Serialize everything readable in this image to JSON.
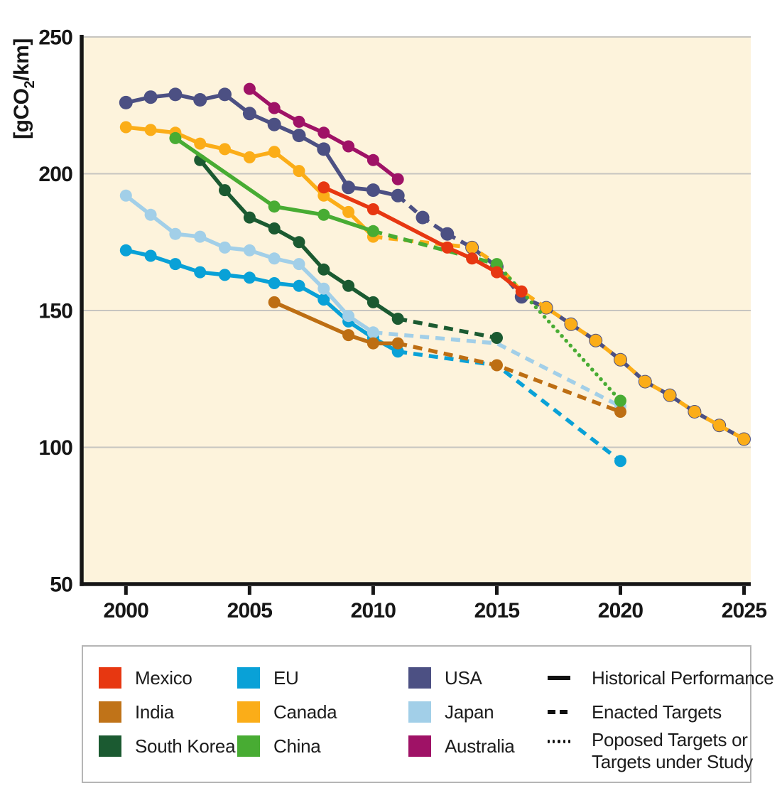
{
  "chart": {
    "plot_bg": "#fdf3dc",
    "grid_color": "#c7c5c0",
    "axis_color": "#161616",
    "gridline_values": [
      250,
      200,
      150,
      100
    ],
    "y_axis": {
      "title_prefix": "[gCO",
      "title_sub": "2",
      "title_suffix": "/km]",
      "ticks": [
        "250",
        "200",
        "150",
        "100",
        "50"
      ],
      "tick_values": [
        250,
        200,
        150,
        100,
        50
      ]
    },
    "x_axis": {
      "ticks": [
        "2000",
        "2005",
        "2010",
        "2015",
        "2020",
        "2025"
      ],
      "tick_values": [
        2000,
        2005,
        2010,
        2015,
        2020,
        2025
      ]
    }
  },
  "chart_data": {
    "type": "line",
    "title": "",
    "xlabel": "",
    "ylabel": "[gCO2/km]",
    "unit": "gCO2/km",
    "xlim": [
      1999.2,
      2025.3
    ],
    "ylim": [
      50,
      250
    ],
    "grid": true,
    "legend_position": "bottom",
    "line_styles": {
      "solid": "Historical Performance",
      "dashed": "Enacted Targets",
      "dotted": "Poposed Targets or Targets under Study"
    },
    "series": [
      {
        "name": "USA",
        "color": "#4c5083",
        "marker_radius": 9.5,
        "segments": [
          {
            "style": "solid",
            "points": [
              [
                2000,
                226
              ],
              [
                2001,
                228
              ],
              [
                2002,
                229
              ],
              [
                2003,
                227
              ],
              [
                2004,
                229
              ],
              [
                2005,
                222
              ],
              [
                2006,
                218
              ],
              [
                2007,
                214
              ],
              [
                2008,
                209
              ],
              [
                2009,
                195
              ],
              [
                2010,
                194
              ],
              [
                2011,
                192
              ]
            ]
          },
          {
            "style": "dashed",
            "points": [
              [
                2011,
                192
              ],
              [
                2012,
                184
              ],
              [
                2013,
                178
              ],
              [
                2014,
                173
              ],
              [
                2015,
                166
              ],
              [
                2016,
                155
              ],
              [
                2017,
                151
              ],
              [
                2018,
                145
              ],
              [
                2019,
                139
              ],
              [
                2020,
                132
              ],
              [
                2021,
                124
              ],
              [
                2022,
                119
              ],
              [
                2023,
                113
              ],
              [
                2024,
                108
              ],
              [
                2025,
                103
              ]
            ]
          }
        ],
        "markers": [
          2000,
          2001,
          2002,
          2003,
          2004,
          2005,
          2006,
          2007,
          2008,
          2009,
          2010,
          2011,
          2012,
          2013,
          2014,
          2015,
          2016,
          2017,
          2018,
          2019,
          2020,
          2021,
          2022,
          2023,
          2024,
          2025
        ]
      },
      {
        "name": "Canada",
        "color": "#fbad18",
        "marker_radius": 8.5,
        "segments": [
          {
            "style": "solid",
            "points": [
              [
                2000,
                217
              ],
              [
                2001,
                216
              ],
              [
                2002,
                215
              ],
              [
                2003,
                211
              ],
              [
                2004,
                209
              ],
              [
                2005,
                206
              ],
              [
                2006,
                208
              ],
              [
                2007,
                201
              ],
              [
                2008,
                192
              ],
              [
                2009,
                186
              ],
              [
                2010,
                177
              ]
            ]
          },
          {
            "style": "dashed",
            "points": [
              [
                2010,
                177
              ],
              [
                2014,
                173
              ],
              [
                2015,
                167
              ],
              [
                2016,
                157
              ],
              [
                2017,
                151
              ],
              [
                2018,
                145
              ],
              [
                2019,
                139
              ],
              [
                2020,
                132
              ],
              [
                2021,
                124
              ],
              [
                2022,
                119
              ],
              [
                2023,
                113
              ],
              [
                2024,
                108
              ],
              [
                2025,
                103
              ]
            ]
          }
        ],
        "markers": [
          2000,
          2001,
          2002,
          2003,
          2004,
          2005,
          2006,
          2007,
          2008,
          2009,
          2010,
          2014,
          2017,
          2018,
          2019,
          2020,
          2021,
          2022,
          2023,
          2024,
          2025
        ]
      },
      {
        "name": "EU",
        "color": "#09a1d7",
        "marker_radius": 8.5,
        "segments": [
          {
            "style": "solid",
            "points": [
              [
                2000,
                172
              ],
              [
                2001,
                170
              ],
              [
                2002,
                167
              ],
              [
                2003,
                164
              ],
              [
                2004,
                163
              ],
              [
                2005,
                162
              ],
              [
                2006,
                160
              ],
              [
                2007,
                159
              ],
              [
                2008,
                154
              ],
              [
                2009,
                146
              ],
              [
                2010,
                140
              ],
              [
                2011,
                135
              ]
            ]
          },
          {
            "style": "dashed",
            "points": [
              [
                2011,
                135
              ],
              [
                2015,
                130
              ],
              [
                2020,
                95
              ]
            ]
          }
        ],
        "markers": [
          2000,
          2001,
          2002,
          2003,
          2004,
          2005,
          2006,
          2007,
          2008,
          2009,
          2010,
          2011,
          2020
        ]
      },
      {
        "name": "Japan",
        "color": "#a2cfe8",
        "marker_radius": 8.5,
        "segments": [
          {
            "style": "solid",
            "points": [
              [
                2000,
                192
              ],
              [
                2001,
                185
              ],
              [
                2002,
                178
              ],
              [
                2003,
                177
              ],
              [
                2004,
                173
              ],
              [
                2005,
                172
              ],
              [
                2006,
                169
              ],
              [
                2007,
                167
              ],
              [
                2008,
                158
              ],
              [
                2009,
                148
              ],
              [
                2010,
                142
              ]
            ]
          },
          {
            "style": "dashed",
            "points": [
              [
                2010,
                142
              ],
              [
                2015,
                138
              ],
              [
                2020,
                115
              ]
            ]
          }
        ],
        "markers": [
          2000,
          2001,
          2002,
          2003,
          2004,
          2005,
          2006,
          2007,
          2008,
          2009,
          2010,
          2020
        ]
      },
      {
        "name": "South Korea",
        "color": "#1b5a31",
        "marker_radius": 8.5,
        "segments": [
          {
            "style": "solid",
            "points": [
              [
                2003,
                205
              ],
              [
                2004,
                194
              ],
              [
                2005,
                184
              ],
              [
                2006,
                180
              ],
              [
                2007,
                175
              ],
              [
                2008,
                165
              ],
              [
                2009,
                159
              ],
              [
                2010,
                153
              ],
              [
                2011,
                147
              ]
            ]
          },
          {
            "style": "dashed",
            "points": [
              [
                2011,
                147
              ],
              [
                2015,
                140
              ]
            ]
          }
        ],
        "markers": [
          2003,
          2004,
          2005,
          2006,
          2007,
          2008,
          2009,
          2010,
          2011,
          2015
        ]
      },
      {
        "name": "India",
        "color": "#bd6e13",
        "marker_radius": 8.5,
        "segments": [
          {
            "style": "solid",
            "points": [
              [
                2006,
                153
              ],
              [
                2009,
                141
              ],
              [
                2010,
                138
              ],
              [
                2011,
                138
              ]
            ]
          },
          {
            "style": "dashed",
            "points": [
              [
                2011,
                138
              ],
              [
                2015,
                130
              ],
              [
                2020,
                113
              ]
            ]
          }
        ],
        "markers": [
          2006,
          2009,
          2010,
          2011,
          2015,
          2020
        ]
      },
      {
        "name": "China",
        "color": "#48ac33",
        "marker_radius": 8.5,
        "segments": [
          {
            "style": "solid",
            "points": [
              [
                2002,
                213
              ],
              [
                2006,
                188
              ],
              [
                2008,
                185
              ],
              [
                2010,
                179
              ]
            ]
          },
          {
            "style": "dashed",
            "points": [
              [
                2010,
                179
              ],
              [
                2015,
                167
              ]
            ]
          },
          {
            "style": "dotted",
            "points": [
              [
                2015,
                167
              ],
              [
                2020,
                117
              ]
            ]
          }
        ],
        "markers": [
          2002,
          2006,
          2008,
          2010,
          2015,
          2020
        ]
      },
      {
        "name": "Australia",
        "color": "#9f1266",
        "marker_radius": 8.5,
        "segments": [
          {
            "style": "solid",
            "points": [
              [
                2005,
                231
              ],
              [
                2006,
                224
              ],
              [
                2007,
                219
              ],
              [
                2008,
                215
              ],
              [
                2009,
                210
              ],
              [
                2010,
                205
              ],
              [
                2011,
                198
              ]
            ]
          }
        ],
        "markers": [
          2005,
          2006,
          2007,
          2008,
          2009,
          2010,
          2011
        ]
      },
      {
        "name": "Mexico",
        "color": "#e73711",
        "marker_radius": 8.5,
        "segments": [
          {
            "style": "solid",
            "points": [
              [
                2008,
                195
              ],
              [
                2010,
                187
              ],
              [
                2013,
                173
              ],
              [
                2014,
                169
              ],
              [
                2015,
                164
              ],
              [
                2016,
                157
              ]
            ]
          }
        ],
        "markers": [
          2008,
          2010,
          2013,
          2014,
          2015,
          2016
        ]
      }
    ]
  },
  "legend": {
    "countries": [
      {
        "label": "Mexico",
        "color": "#e73711"
      },
      {
        "label": "India",
        "color": "#c07318"
      },
      {
        "label": "South Korea",
        "color": "#1b5a31"
      },
      {
        "label": "EU",
        "color": "#09a1d7"
      },
      {
        "label": "Canada",
        "color": "#fbad18"
      },
      {
        "label": "China",
        "color": "#48ac33"
      },
      {
        "label": "USA",
        "color": "#4c5083"
      },
      {
        "label": "Japan",
        "color": "#a2cfe8"
      },
      {
        "label": "Australia",
        "color": "#9f1266"
      }
    ],
    "styles": [
      {
        "label": "Historical Performance",
        "style": "solid"
      },
      {
        "label": "Enacted Targets",
        "style": "dashed"
      },
      {
        "label": "Poposed Targets or Targets under Study",
        "style": "dotted"
      }
    ]
  }
}
